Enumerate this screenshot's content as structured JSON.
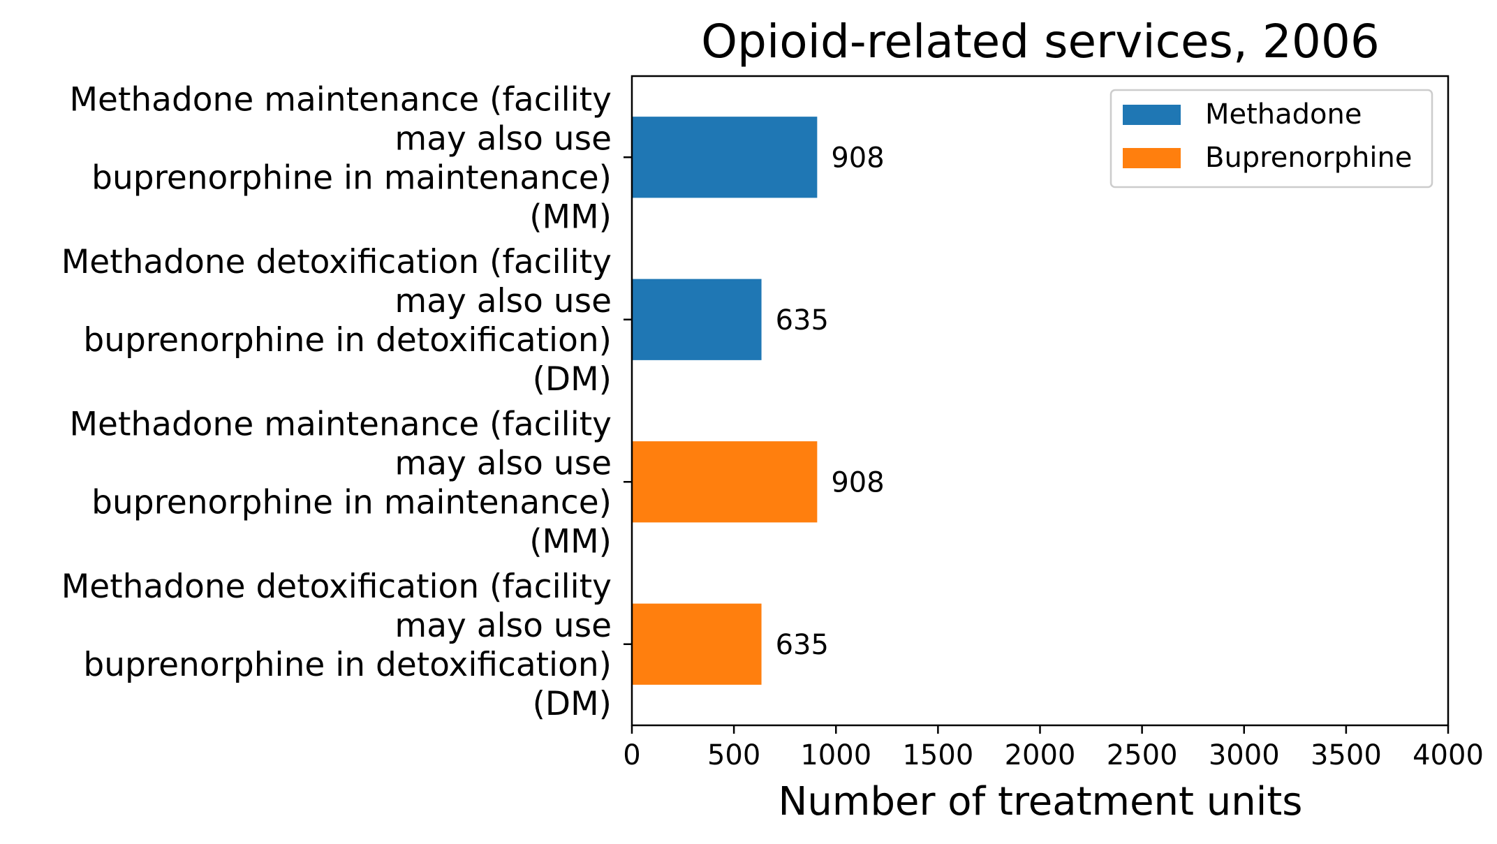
{
  "chart_data": {
    "type": "bar",
    "orientation": "horizontal",
    "title": "Opioid-related services, 2006",
    "xlabel": "Number of treatment units",
    "ylabel": "",
    "xlim": [
      0,
      4000
    ],
    "xticks": [
      0,
      500,
      1000,
      1500,
      2000,
      2500,
      3000,
      3500,
      4000
    ],
    "grid": false,
    "legend_position": "upper-right",
    "categories": [
      [
        "Methadone maintenance (facility",
        "may also use",
        "buprenorphine in maintenance)",
        "(MM)"
      ],
      [
        "Methadone detoxification (facility",
        "may also use",
        "buprenorphine in detoxification)",
        "(DM)"
      ],
      [
        "Methadone maintenance (facility",
        "may also use",
        "buprenorphine in maintenance)",
        "(MM)"
      ],
      [
        "Methadone detoxification (facility",
        "may also use",
        "buprenorphine in detoxification)",
        "(DM)"
      ]
    ],
    "series": [
      {
        "name": "Methadone",
        "color": "#1f77b4",
        "bars": [
          {
            "category_index": 0,
            "value": 908,
            "label": "908"
          },
          {
            "category_index": 1,
            "value": 635,
            "label": "635"
          }
        ]
      },
      {
        "name": "Buprenorphine",
        "color": "#ff7f0e",
        "bars": [
          {
            "category_index": 2,
            "value": 908,
            "label": "908"
          },
          {
            "category_index": 3,
            "value": 635,
            "label": "635"
          }
        ]
      }
    ]
  }
}
